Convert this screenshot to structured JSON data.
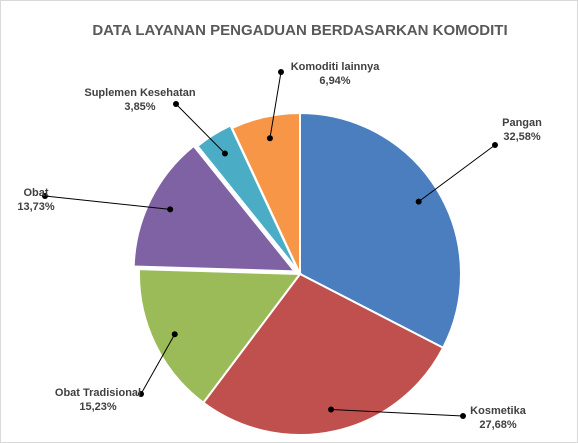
{
  "chart_data": {
    "type": "pie",
    "title": "DATA LAYANAN PENGADUAN BERDASARKAN KOMODITI",
    "categories": [
      "Pangan",
      "Kosmetika",
      "Obat Tradisional",
      "Obat",
      "Suplemen Kesehatan",
      "Komoditi lainnya"
    ],
    "values": [
      32.58,
      27.68,
      15.23,
      13.73,
      3.85,
      6.94
    ],
    "value_labels": [
      "32,58%",
      "27,68%",
      "15,23%",
      "13,73%",
      "3,85%",
      "6,94%"
    ],
    "colors": [
      "#4a7ebf",
      "#c0504d",
      "#9bbb59",
      "#7f62a3",
      "#4bacc6",
      "#f79646"
    ]
  }
}
